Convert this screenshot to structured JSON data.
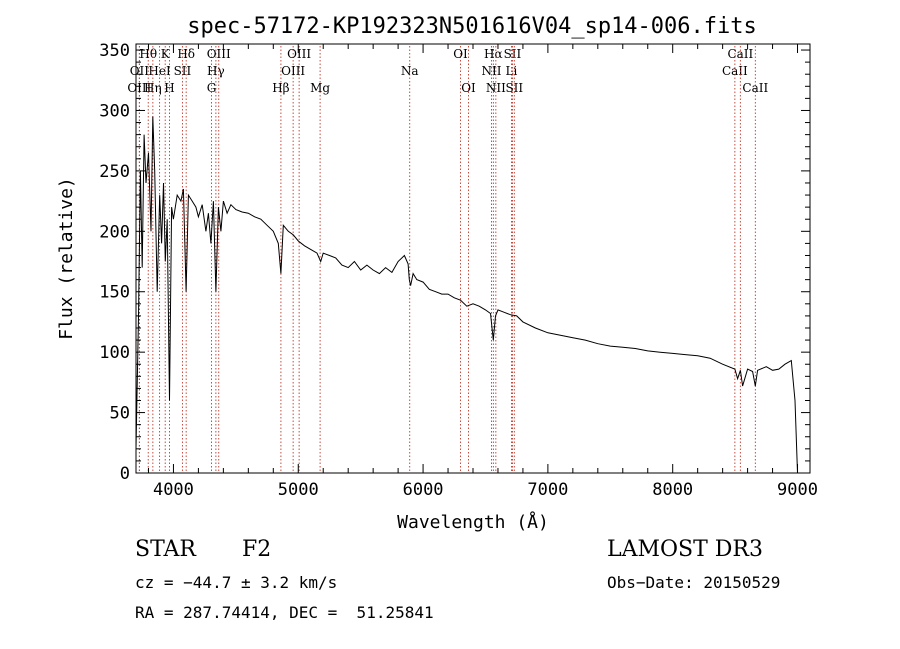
{
  "chart_data": {
    "type": "line",
    "title": "spec-57172-KP192323N501616V04_sp14-006.fits",
    "xlabel": "Wavelength (Å)",
    "ylabel": "Flux (relative)",
    "xlim": [
      3700,
      9100
    ],
    "ylim": [
      0,
      355
    ],
    "x_ticks": [
      4000,
      5000,
      6000,
      7000,
      8000,
      9000
    ],
    "y_ticks": [
      0,
      50,
      100,
      150,
      200,
      250,
      300,
      350
    ],
    "grid": false,
    "series": [
      {
        "name": "spectrum",
        "x": [
          3700,
          3720,
          3735,
          3750,
          3765,
          3780,
          3800,
          3820,
          3835,
          3850,
          3870,
          3890,
          3905,
          3920,
          3935,
          3950,
          3968,
          3985,
          4000,
          4030,
          4060,
          4080,
          4101,
          4120,
          4150,
          4180,
          4200,
          4230,
          4260,
          4280,
          4300,
          4320,
          4340,
          4360,
          4380,
          4400,
          4430,
          4460,
          4500,
          4550,
          4600,
          4650,
          4700,
          4750,
          4800,
          4840,
          4861,
          4880,
          4920,
          4960,
          5000,
          5050,
          5100,
          5150,
          5180,
          5200,
          5250,
          5300,
          5350,
          5400,
          5450,
          5500,
          5550,
          5600,
          5650,
          5700,
          5750,
          5800,
          5850,
          5880,
          5890,
          5900,
          5920,
          5950,
          6000,
          6050,
          6100,
          6150,
          6200,
          6250,
          6300,
          6350,
          6400,
          6450,
          6500,
          6540,
          6563,
          6580,
          6600,
          6650,
          6700,
          6750,
          6800,
          6900,
          7000,
          7100,
          7200,
          7300,
          7400,
          7500,
          7600,
          7700,
          7800,
          7900,
          8000,
          8100,
          8200,
          8300,
          8400,
          8498,
          8520,
          8542,
          8560,
          8600,
          8640,
          8662,
          8680,
          8750,
          8800,
          8850,
          8900,
          8950,
          8980,
          9000
        ],
        "y": [
          20,
          130,
          250,
          170,
          280,
          240,
          265,
          200,
          295,
          250,
          150,
          230,
          190,
          240,
          175,
          210,
          60,
          220,
          210,
          230,
          225,
          235,
          150,
          230,
          225,
          220,
          212,
          222,
          200,
          215,
          190,
          225,
          150,
          220,
          200,
          225,
          215,
          222,
          218,
          216,
          215,
          212,
          210,
          205,
          200,
          190,
          165,
          205,
          200,
          197,
          192,
          188,
          185,
          182,
          175,
          182,
          180,
          178,
          172,
          170,
          175,
          168,
          172,
          168,
          165,
          170,
          166,
          175,
          180,
          173,
          160,
          155,
          165,
          160,
          158,
          152,
          150,
          148,
          148,
          145,
          143,
          138,
          140,
          138,
          135,
          132,
          110,
          130,
          135,
          133,
          131,
          130,
          125,
          120,
          116,
          114,
          112,
          110,
          107,
          105,
          104,
          103,
          101,
          100,
          99,
          98,
          97,
          95,
          90,
          86,
          78,
          85,
          72,
          86,
          84,
          72,
          85,
          88,
          85,
          86,
          90,
          93,
          60,
          0
        ]
      }
    ],
    "lines": [
      {
        "label": "Hθ",
        "x": 3798,
        "row": 1
      },
      {
        "label": "OII",
        "x": 3727,
        "row": 2
      },
      {
        "label": "OIII",
        "x": 3727,
        "row": 3
      },
      {
        "label": "Hη",
        "x": 3835,
        "row": 3
      },
      {
        "label": "HeI",
        "x": 3889,
        "row": 2
      },
      {
        "label": "K",
        "x": 3934,
        "row": 1
      },
      {
        "label": "H",
        "x": 3968,
        "row": 3
      },
      {
        "label": "SII",
        "x": 4072,
        "row": 2
      },
      {
        "label": "Hδ",
        "x": 4102,
        "row": 1
      },
      {
        "label": "Hγ",
        "x": 4340,
        "row": 2
      },
      {
        "label": "G",
        "x": 4305,
        "row": 3
      },
      {
        "label": "OIII",
        "x": 4363,
        "row": 1
      },
      {
        "label": "Hβ",
        "x": 4861,
        "row": 3
      },
      {
        "label": "OIII",
        "x": 4959,
        "row": 2
      },
      {
        "label": "OIII",
        "x": 5007,
        "row": 1
      },
      {
        "label": "Mg",
        "x": 5175,
        "row": 3
      },
      {
        "label": "Na",
        "x": 5893,
        "row": 2
      },
      {
        "label": "OI",
        "x": 6300,
        "row": 1
      },
      {
        "label": "OI",
        "x": 6364,
        "row": 3
      },
      {
        "label": "NII",
        "x": 6548,
        "row": 2
      },
      {
        "label": "Hα",
        "x": 6563,
        "row": 1
      },
      {
        "label": "NII",
        "x": 6583,
        "row": 3
      },
      {
        "label": "Li",
        "x": 6708,
        "row": 2
      },
      {
        "label": "SII",
        "x": 6716,
        "row": 1
      },
      {
        "label": "SII",
        "x": 6731,
        "row": 3
      },
      {
        "label": "CaII",
        "x": 8498,
        "row": 2
      },
      {
        "label": "CaII",
        "x": 8542,
        "row": 1
      },
      {
        "label": "CaII",
        "x": 8662,
        "row": 3
      }
    ]
  },
  "info": {
    "object_class": "STAR",
    "subclass": "F2",
    "survey": "LAMOST DR3",
    "redshift": "cz = −44.7 ± 3.2 km/s",
    "obs_date": "Obs−Date: 20150529",
    "coords": "RA = 287.74414, DEC =  51.25841"
  },
  "colors": {
    "axis": "#000000",
    "spectrum": "#000000",
    "line_marker": "#c0392b"
  }
}
